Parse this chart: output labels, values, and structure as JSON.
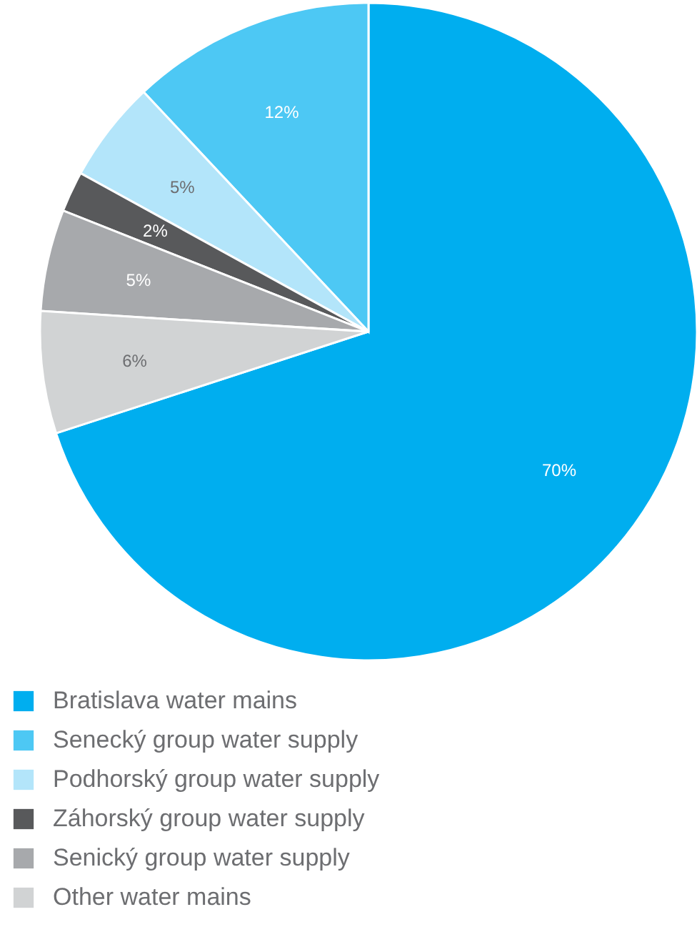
{
  "chart_data": {
    "type": "pie",
    "categories": [
      "Bratislava water mains",
      "Senecký group water supply",
      "Podhorský group water supply",
      "Záhorský group water supply",
      "Senický group water supply",
      "Other water mains"
    ],
    "values": [
      70,
      12,
      5,
      2,
      5,
      6
    ],
    "value_labels": [
      "70%",
      "12%",
      "5%",
      "2%",
      "5%",
      "6%"
    ],
    "colors": [
      "#00aeef",
      "#4dc8f4",
      "#b3e5fa",
      "#58595b",
      "#a7a9ac",
      "#d1d3d4"
    ],
    "legend": "bottom"
  }
}
